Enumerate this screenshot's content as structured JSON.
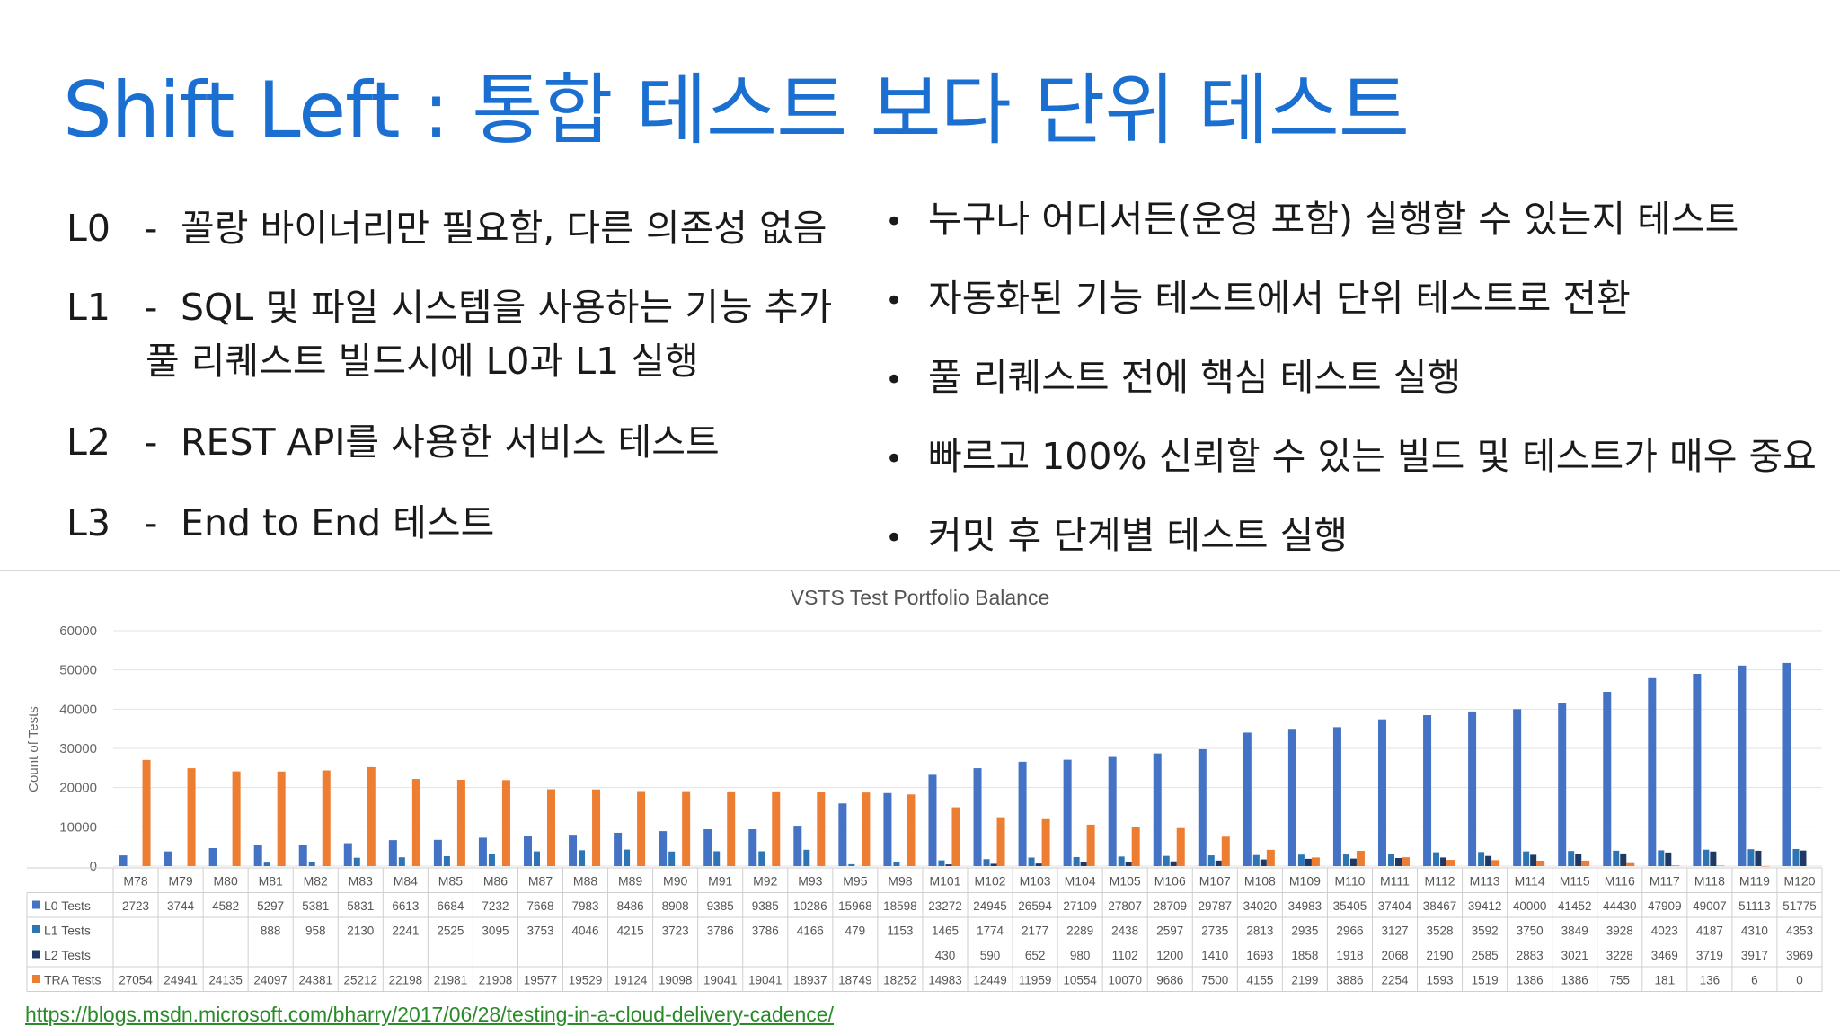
{
  "slide": {
    "title": "Shift Left : 통합 테스트 보다 단위 테스트",
    "levels": [
      {
        "code": "L0",
        "text": "꼴랑 바이너리만 필요함, 다른 의존성 없음"
      },
      {
        "code": "L1",
        "text": "SQL 및 파일 시스템을 사용하는 기능 추가",
        "subtext": "풀 리퀘스트 빌드시에 L0과 L1 실행"
      },
      {
        "code": "L2",
        "text": "REST API를 사용한 서비스 테스트"
      },
      {
        "code": "L3",
        "text": "End to End 테스트"
      }
    ],
    "dash": "-",
    "bullet_char": "•",
    "bullets": [
      "누구나 어디서든(운영 포함) 실행할 수 있는지 테스트",
      "자동화된 기능 테스트에서 단위 테스트로 전환",
      "풀 리퀘스트 전에 핵심 테스트 실행",
      "빠르고 100% 신뢰할 수 있는 빌드 및 테스트가 매우 중요",
      "커밋 후 단계별 테스트 실행"
    ],
    "source_link": "https://blogs.msdn.microsoft.com/bharry/2017/06/28/testing-in-a-cloud-delivery-cadence/",
    "colors": {
      "title": "#1b6fd0",
      "link": "#2a8a2a"
    }
  },
  "chart_data": {
    "type": "bar",
    "title": "VSTS Test Portfolio Balance",
    "ylabel": "Count of Tests",
    "xlabel": "",
    "ylim": [
      0,
      60000
    ],
    "yticks": [
      0,
      10000,
      20000,
      30000,
      40000,
      50000,
      60000
    ],
    "grid": true,
    "legend": "table",
    "categories": [
      "M78",
      "M79",
      "M80",
      "M81",
      "M82",
      "M83",
      "M84",
      "M85",
      "M86",
      "M87",
      "M88",
      "M89",
      "M90",
      "M91",
      "M92",
      "M93",
      "M95",
      "M98",
      "M101",
      "M102",
      "M103",
      "M104",
      "M105",
      "M106",
      "M107",
      "M108",
      "M109",
      "M110",
      "M111",
      "M112",
      "M113",
      "M114",
      "M115",
      "M116",
      "M117",
      "M118",
      "M119",
      "M120"
    ],
    "series": [
      {
        "name": "L0 Tests",
        "color": "#4472c4",
        "values": [
          2723,
          3744,
          4582,
          5297,
          5381,
          5831,
          6613,
          6684,
          7232,
          7668,
          7983,
          8486,
          8908,
          9385,
          9385,
          10286,
          15968,
          18598,
          23272,
          24945,
          26594,
          27109,
          27807,
          28709,
          29787,
          34020,
          34983,
          35405,
          37404,
          38467,
          39412,
          40000,
          41452,
          44430,
          47909,
          49007,
          51113,
          51775
        ]
      },
      {
        "name": "L1 Tests",
        "color": "#2e75b6",
        "values": [
          null,
          null,
          null,
          888,
          958,
          2130,
          2241,
          2525,
          3095,
          3753,
          4046,
          4215,
          3723,
          3786,
          3786,
          4166,
          479,
          1153,
          1465,
          1774,
          2177,
          2289,
          2438,
          2597,
          2735,
          2813,
          2935,
          2966,
          3127,
          3528,
          3592,
          3750,
          3849,
          3928,
          4023,
          4187,
          4310,
          4353
        ]
      },
      {
        "name": "L2 Tests",
        "color": "#1f3864",
        "values": [
          null,
          null,
          null,
          null,
          null,
          null,
          null,
          null,
          null,
          null,
          null,
          null,
          null,
          null,
          null,
          null,
          null,
          null,
          430,
          590,
          652,
          980,
          1102,
          1200,
          1410,
          1693,
          1858,
          1918,
          2068,
          2190,
          2585,
          2883,
          3021,
          3228,
          3469,
          3719,
          3917,
          3969
        ]
      },
      {
        "name": "TRA Tests",
        "color": "#ed7d31",
        "values": [
          27054,
          24941,
          24135,
          24097,
          24381,
          25212,
          22198,
          21981,
          21908,
          19577,
          19529,
          19124,
          19098,
          19041,
          19041,
          18937,
          18749,
          18252,
          14983,
          12449,
          11959,
          10554,
          10070,
          9686,
          7500,
          4155,
          2199,
          3886,
          2254,
          1593,
          1519,
          1386,
          1386,
          755,
          181,
          136,
          6,
          0
        ]
      }
    ]
  }
}
